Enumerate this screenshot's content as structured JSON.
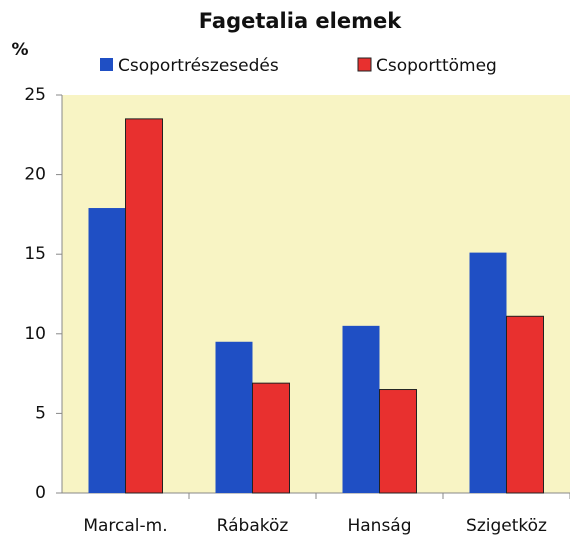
{
  "chart_data": {
    "type": "bar",
    "title": "Fagetalia elemek",
    "y_label": "%",
    "categories": [
      "Marcal-m.",
      "Rábaköz",
      "Hanság",
      "Szigetköz"
    ],
    "series": [
      {
        "name": "Csoportrészesedés",
        "color": "#1f4fc4",
        "values": [
          17.9,
          9.5,
          10.5,
          15.1
        ]
      },
      {
        "name": "Csoporttömeg",
        "color": "#e8302f",
        "values": [
          23.5,
          6.9,
          6.5,
          11.1
        ]
      }
    ],
    "ylim": [
      0,
      25
    ],
    "yticks": [
      0,
      5,
      10,
      15,
      20,
      25
    ],
    "grid": false,
    "plot_background": "#f8f4c4"
  }
}
